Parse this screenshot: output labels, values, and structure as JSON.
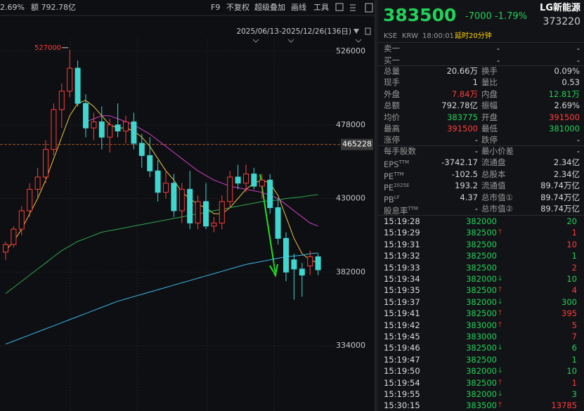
{
  "toolbar": {
    "items": [
      "F9",
      "不复权",
      "超级叠加",
      "画线",
      "工具"
    ],
    "change_pct": "2.69%",
    "amount": "额 792.78亿",
    "date_range": "2025/06/13-2025/12/26(136日)"
  },
  "chart_data": {
    "type": "candlestick",
    "up_color": "#ff3b3b",
    "down_color": "#3fd6d0",
    "ylim": [
      291400,
      534250
    ],
    "yticks": [
      526000,
      478000,
      430000,
      382000,
      334000
    ],
    "grid": true,
    "ref_line": 465228,
    "max_label": 527000,
    "open": [
      395000,
      400000,
      410000,
      422000,
      436000,
      444000,
      462000,
      488000,
      500000,
      515000,
      492000,
      476000,
      480000,
      470000,
      478000,
      474000,
      480000,
      466000,
      458000,
      448000,
      434000,
      440000,
      422000,
      436000,
      414000,
      428000,
      412000,
      414000,
      428000,
      444000,
      440000,
      446000,
      438000,
      442000,
      424000,
      404000,
      390000,
      384000,
      386000,
      392000
    ],
    "high": [
      402000,
      412000,
      425000,
      440000,
      450000,
      468000,
      492000,
      505000,
      527000,
      520000,
      498000,
      486000,
      490000,
      482000,
      492000,
      484000,
      486000,
      472000,
      470000,
      455000,
      448000,
      446000,
      440000,
      448000,
      432000,
      440000,
      418000,
      432000,
      448000,
      452000,
      452000,
      450000,
      446000,
      446000,
      430000,
      408000,
      394000,
      388000,
      396000,
      394000
    ],
    "low": [
      390000,
      398000,
      406000,
      418000,
      430000,
      440000,
      458000,
      476000,
      496000,
      490000,
      470000,
      468000,
      462000,
      460000,
      470000,
      466000,
      462000,
      450000,
      444000,
      428000,
      430000,
      418000,
      414000,
      410000,
      410000,
      410000,
      408000,
      410000,
      424000,
      436000,
      434000,
      436000,
      430000,
      420000,
      400000,
      376000,
      364000,
      366000,
      380000,
      380000
    ],
    "close": [
      400000,
      410000,
      422000,
      436000,
      444000,
      462000,
      488000,
      500000,
      515000,
      492000,
      476000,
      480000,
      470000,
      478000,
      474000,
      480000,
      466000,
      458000,
      448000,
      434000,
      440000,
      422000,
      436000,
      414000,
      428000,
      412000,
      414000,
      428000,
      444000,
      440000,
      446000,
      438000,
      442000,
      424000,
      404000,
      382000,
      384000,
      380000,
      392000,
      383500
    ],
    "series": [
      {
        "color": "#e8c547",
        "values": [
          396000,
          402000,
          410000,
          420000,
          430000,
          442000,
          456000,
          470000,
          484000,
          492000,
          494000,
          490000,
          484000,
          478000,
          476000,
          476000,
          474000,
          470000,
          464000,
          456000,
          448000,
          442000,
          434000,
          430000,
          426000,
          424000,
          420000,
          420000,
          424000,
          430000,
          436000,
          440000,
          442000,
          440000,
          432000,
          418000,
          404000,
          394000,
          390000,
          388000
        ]
      },
      {
        "color": "#d040c8",
        "values": [
          null,
          null,
          null,
          null,
          null,
          null,
          null,
          null,
          null,
          null,
          480000,
          482000,
          484000,
          484000,
          482000,
          480000,
          478000,
          475000,
          472000,
          468000,
          464000,
          460000,
          456000,
          452000,
          448000,
          445000,
          442000,
          440000,
          438000,
          437000,
          436000,
          435000,
          434000,
          432000,
          430000,
          426000,
          422000,
          418000,
          414000,
          412000
        ]
      },
      {
        "color": "#2fa84f",
        "values": [
          368000,
          372000,
          376000,
          380000,
          384000,
          388000,
          392000,
          396000,
          399000,
          402000,
          404000,
          406000,
          408000,
          409000,
          410000,
          411000,
          412000,
          413000,
          414000,
          415000,
          416000,
          417000,
          418000,
          419000,
          420000,
          421000,
          422000,
          423000,
          424000,
          425000,
          426000,
          427000,
          428000,
          428500,
          429000,
          430000,
          430500,
          431000,
          432000,
          432500
        ]
      },
      {
        "color": "#3ab8e8",
        "values": [
          335000,
          337000,
          339000,
          341000,
          343000,
          345000,
          347000,
          349000,
          351000,
          353000,
          355000,
          357000,
          359000,
          361000,
          363000,
          364500,
          366000,
          367500,
          369000,
          370500,
          372000,
          373500,
          375000,
          376500,
          378000,
          379500,
          381000,
          382500,
          384000,
          385500,
          387000,
          388000,
          389000,
          390000,
          391000,
          392000,
          392500,
          393000,
          394000,
          394500
        ]
      }
    ]
  },
  "quote": {
    "price": "383500",
    "change": "-7000",
    "change_pct": "-1.79%",
    "name": "LG新能源",
    "code": "373220",
    "market": "KSE",
    "currency": "KRW",
    "time": "18:00:01",
    "delay": "延时20分钟",
    "book": [
      [
        "卖一",
        "-",
        "-"
      ],
      [
        "买一",
        "-",
        "-"
      ]
    ],
    "stats": [
      [
        {
          "label": "总量",
          "value": "20.66万"
        },
        {
          "label": "换手",
          "value": "0.09%"
        }
      ],
      [
        {
          "label": "现手",
          "value": "1"
        },
        {
          "label": "量比",
          "value": "0.53"
        }
      ],
      [
        {
          "label": "外盘",
          "value": "7.84万",
          "color": "red"
        },
        {
          "label": "内盘",
          "value": "12.81万",
          "color": "green"
        }
      ],
      [
        {
          "label": "总额",
          "value": "792.78亿"
        },
        {
          "label": "振幅",
          "value": "2.69%"
        }
      ],
      [
        {
          "label": "均价",
          "value": "383775",
          "color": "green"
        },
        {
          "label": "开盘",
          "value": "391500",
          "color": "red"
        }
      ],
      [
        {
          "label": "最高",
          "value": "391500",
          "color": "red"
        },
        {
          "label": "最低",
          "value": "381000",
          "color": "green"
        }
      ],
      [
        {
          "label": "涨停",
          "value": "-"
        },
        {
          "label": "跌停",
          "value": "-"
        }
      ]
    ],
    "fundamentals": [
      [
        {
          "label": "每手股数",
          "value": "-"
        },
        {
          "label": "最小价差",
          "value": "-"
        }
      ],
      [
        {
          "label": "EPS",
          "sup": "TTM",
          "value": "-3742.17"
        },
        {
          "label": "流通盘",
          "value": "2.34亿"
        }
      ],
      [
        {
          "label": "PE",
          "sup": "TTM",
          "value": "-102.5"
        },
        {
          "label": "总股本",
          "value": "2.34亿"
        }
      ],
      [
        {
          "label": "PE",
          "sup": "2025E",
          "value": "193.2"
        },
        {
          "label": "流通值",
          "value": "89.74万亿"
        }
      ],
      [
        {
          "label": "PB",
          "sup": "LF",
          "value": "4.37"
        },
        {
          "label": "总市值①",
          "value": "89.74万亿"
        }
      ],
      [
        {
          "label": "股息率",
          "sup": "TTM",
          "value": "-"
        },
        {
          "label": "总市值②",
          "value": "89.74万亿"
        }
      ]
    ],
    "trades": [
      {
        "time": "15:19:28",
        "price": "382000",
        "volume": "20",
        "side": "down",
        "arrow": false
      },
      {
        "time": "15:19:29",
        "price": "382500",
        "volume": "1",
        "side": "up",
        "arrow": true
      },
      {
        "time": "15:19:31",
        "price": "382500",
        "volume": "10",
        "side": "up",
        "arrow": false
      },
      {
        "time": "15:19:32",
        "price": "382500",
        "volume": "1",
        "side": "down",
        "arrow": false
      },
      {
        "time": "15:19:33",
        "price": "382500",
        "volume": "2",
        "side": "up",
        "arrow": false
      },
      {
        "time": "15:19:34",
        "price": "382000",
        "volume": "10",
        "side": "down",
        "arrow": true
      },
      {
        "time": "15:19:35",
        "price": "382500",
        "volume": "4",
        "side": "up",
        "arrow": true
      },
      {
        "time": "15:19:37",
        "price": "382000",
        "volume": "300",
        "side": "down",
        "arrow": true
      },
      {
        "time": "15:19:41",
        "price": "382500",
        "volume": "395",
        "side": "up",
        "arrow": true
      },
      {
        "time": "15:19:42",
        "price": "383000",
        "volume": "5",
        "side": "up",
        "arrow": true
      },
      {
        "time": "15:19:45",
        "price": "383000",
        "volume": "7",
        "side": "up",
        "arrow": false
      },
      {
        "time": "15:19:46",
        "price": "382500",
        "volume": "6",
        "side": "down",
        "arrow": true
      },
      {
        "time": "15:19:47",
        "price": "382500",
        "volume": "1",
        "side": "down",
        "arrow": false
      },
      {
        "time": "15:19:50",
        "price": "382000",
        "volume": "10",
        "side": "down",
        "arrow": true
      },
      {
        "time": "15:19:54",
        "price": "382500",
        "volume": "1",
        "side": "up",
        "arrow": true
      },
      {
        "time": "15:19:55",
        "price": "382000",
        "volume": "3",
        "side": "down",
        "arrow": true
      },
      {
        "time": "15:30:15",
        "price": "383500",
        "volume": "13785",
        "side": "up",
        "arrow": true
      }
    ]
  }
}
